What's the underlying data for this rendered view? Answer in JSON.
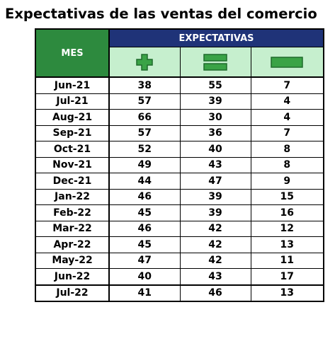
{
  "chart_data": {
    "type": "table",
    "title": "Expectativas de las ventas del comercio",
    "row_header": "MES",
    "group_header": "EXPECTATIVAS",
    "columns": [
      {
        "icon": "plus-icon"
      },
      {
        "icon": "equals-icon"
      },
      {
        "icon": "minus-icon"
      }
    ],
    "icon_colors": {
      "fill": "#3aa346",
      "stroke": "#1e6b2b"
    },
    "header_colors": {
      "mes": "#2d8a3e",
      "expectativas": "#1f3378",
      "icon_row": "#c6efce"
    },
    "rows": [
      {
        "mes": "Jun-21",
        "values": [
          "38",
          "55",
          "7"
        ]
      },
      {
        "mes": "Jul-21",
        "values": [
          "57",
          "39",
          "4"
        ]
      },
      {
        "mes": "Aug-21",
        "values": [
          "66",
          "30",
          "4"
        ]
      },
      {
        "mes": "Sep-21",
        "values": [
          "57",
          "36",
          "7"
        ]
      },
      {
        "mes": "Oct-21",
        "values": [
          "52",
          "40",
          "8"
        ]
      },
      {
        "mes": "Nov-21",
        "values": [
          "49",
          "43",
          "8"
        ]
      },
      {
        "mes": "Dec-21",
        "values": [
          "44",
          "47",
          "9"
        ]
      },
      {
        "mes": "Jan-22",
        "values": [
          "46",
          "39",
          "15"
        ]
      },
      {
        "mes": "Feb-22",
        "values": [
          "45",
          "39",
          "16"
        ]
      },
      {
        "mes": "Mar-22",
        "values": [
          "46",
          "42",
          "12"
        ]
      },
      {
        "mes": "Apr-22",
        "values": [
          "45",
          "42",
          "13"
        ]
      },
      {
        "mes": "May-22",
        "values": [
          "47",
          "42",
          "11"
        ]
      },
      {
        "mes": "Jun-22",
        "values": [
          "40",
          "43",
          "17"
        ]
      },
      {
        "mes": "Jul-22",
        "values": [
          "41",
          "46",
          "13"
        ]
      }
    ]
  }
}
